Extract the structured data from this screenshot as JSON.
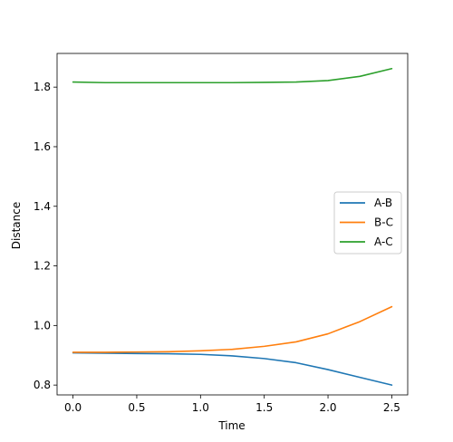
{
  "chart_data": {
    "type": "line",
    "title": "",
    "xlabel": "Time",
    "ylabel": "Distance",
    "xlim": [
      -0.125,
      2.625
    ],
    "ylim": [
      0.767,
      1.913
    ],
    "xticks": [
      0.0,
      0.5,
      1.0,
      1.5,
      2.0,
      2.5
    ],
    "xtick_labels": [
      "0.0",
      "0.5",
      "1.0",
      "1.5",
      "2.0",
      "2.5"
    ],
    "yticks": [
      0.8,
      1.0,
      1.2,
      1.4,
      1.6,
      1.8
    ],
    "ytick_labels": [
      "0.8",
      "1.0",
      "1.2",
      "1.4",
      "1.6",
      "1.8"
    ],
    "grid": false,
    "legend_position": "center-right",
    "x": [
      0.0,
      0.25,
      0.5,
      0.75,
      1.0,
      1.25,
      1.5,
      1.75,
      2.0,
      2.25,
      2.5
    ],
    "series": [
      {
        "name": "A-B",
        "color": "#1f77b4",
        "values": [
          0.908,
          0.907,
          0.906,
          0.905,
          0.903,
          0.898,
          0.889,
          0.875,
          0.852,
          0.826,
          0.8
        ]
      },
      {
        "name": "B-C",
        "color": "#ff7f0e",
        "values": [
          0.91,
          0.91,
          0.911,
          0.912,
          0.915,
          0.92,
          0.93,
          0.945,
          0.972,
          1.013,
          1.063
        ]
      },
      {
        "name": "A-C",
        "color": "#2ca02c",
        "values": [
          1.817,
          1.815,
          1.815,
          1.815,
          1.815,
          1.815,
          1.816,
          1.817,
          1.822,
          1.836,
          1.862
        ]
      }
    ]
  }
}
